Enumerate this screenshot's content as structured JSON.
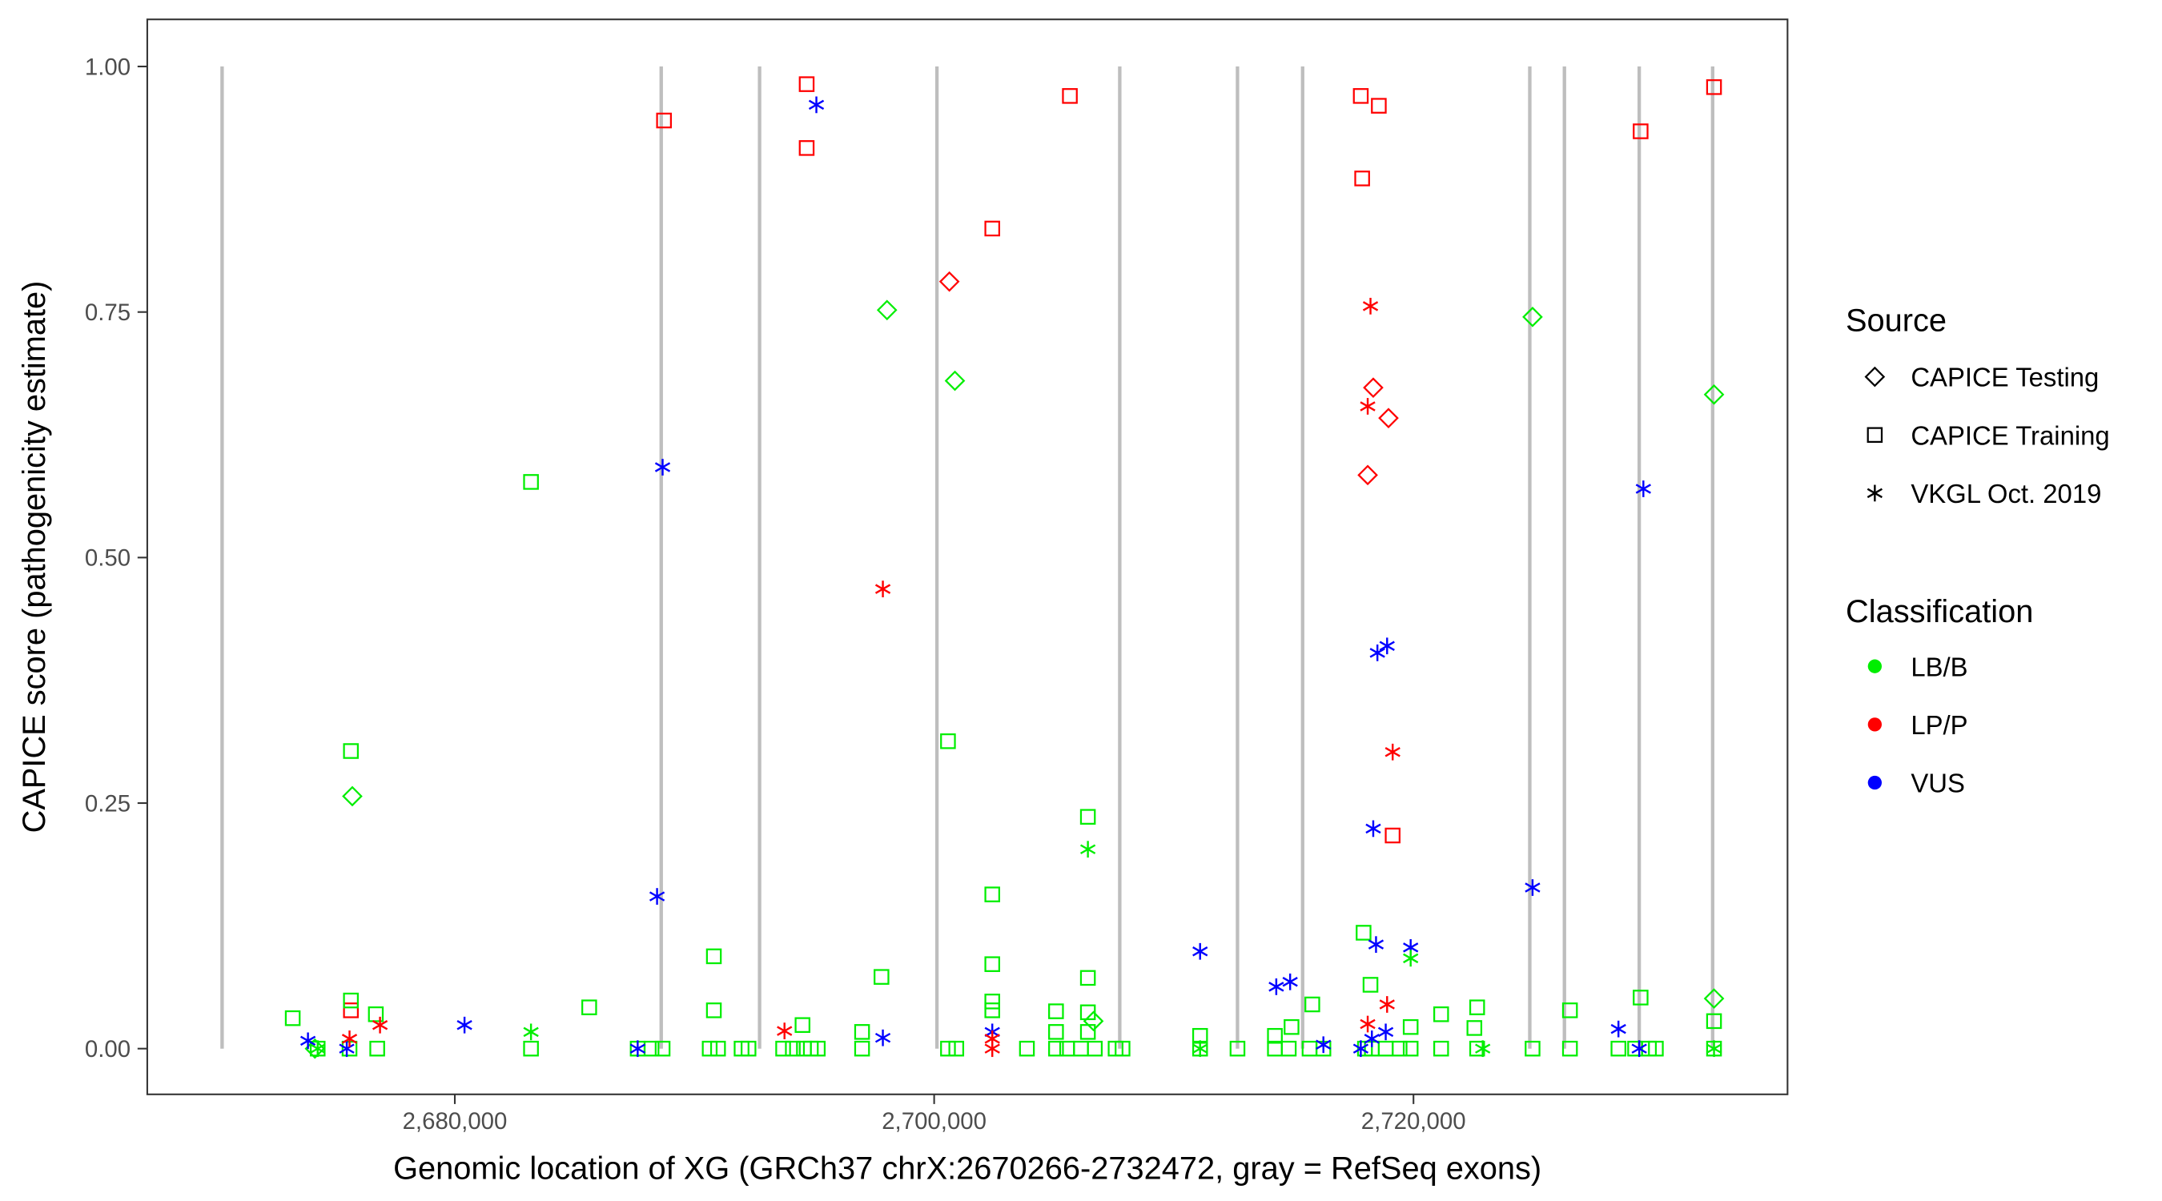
{
  "chart_data": {
    "type": "scatter",
    "xlabel": "Genomic location of XG (GRCh37 chrX:2670266-2732472, gray = RefSeq exons)",
    "ylabel": "CAPICE score (pathogenicity estimate)",
    "xlim": [
      2676000,
      2743000
    ],
    "ylim": [
      -0.046,
      1.046
    ],
    "x_ticks": [
      2680000,
      2700000,
      2720000
    ],
    "x_tick_labels": [
      "2,680,000",
      "2,700,000",
      "2,720,000"
    ],
    "y_ticks": [
      0,
      0.25,
      0.5,
      0.75,
      1
    ],
    "y_tick_labels": [
      "0.00",
      "0.25",
      "0.50",
      "0.75",
      "1.00"
    ],
    "grid": false,
    "exons": [
      2670290,
      2688612,
      2692716,
      2700116,
      2707744,
      2712657,
      2715374,
      2724853,
      2726298,
      2729419,
      2732482
    ],
    "legend": {
      "placement": "right",
      "source_title": "Source",
      "sources": [
        {
          "key": "testing",
          "label": "CAPICE Testing",
          "shape": "diamond"
        },
        {
          "key": "training",
          "label": "CAPICE Training",
          "shape": "square"
        },
        {
          "key": "vkgl",
          "label": "VKGL Oct. 2019",
          "shape": "asterisk"
        }
      ],
      "class_title": "Classification",
      "classes": [
        {
          "key": "LB/B",
          "label": "LB/B",
          "color": "#00ee00"
        },
        {
          "key": "LP/P",
          "label": "LP/P",
          "color": "#ff0000"
        },
        {
          "key": "VUS",
          "label": "VUS",
          "color": "#0000ff"
        }
      ]
    },
    "series": {
      "testing": [
        [
          2675723,
          0.257,
          "LB/B"
        ],
        [
          2698034,
          0.752,
          "LB/B"
        ],
        [
          2700866,
          0.68,
          "LB/B"
        ],
        [
          2724968,
          0.745,
          "LB/B"
        ],
        [
          2732540,
          0.666,
          "LB/B"
        ],
        [
          2732540,
          0.051,
          "LB/B"
        ],
        [
          2706646,
          0.028,
          "LB/B"
        ],
        [
          2674162,
          0.0,
          "LB/B"
        ],
        [
          2700635,
          0.781,
          "LP/P"
        ],
        [
          2718321,
          0.673,
          "LP/P"
        ],
        [
          2718957,
          0.642,
          "LP/P"
        ],
        [
          2718090,
          0.584,
          "LP/P"
        ]
      ],
      "training": [
        [
          2694681,
          0.982,
          "LP/P"
        ],
        [
          2688728,
          0.945,
          "LP/P"
        ],
        [
          2694681,
          0.917,
          "LP/P"
        ],
        [
          2702426,
          0.835,
          "LP/P"
        ],
        [
          2705663,
          0.97,
          "LP/P"
        ],
        [
          2717801,
          0.97,
          "LP/P"
        ],
        [
          2718553,
          0.96,
          "LP/P"
        ],
        [
          2717859,
          0.886,
          "LP/P"
        ],
        [
          2729477,
          0.934,
          "LP/P"
        ],
        [
          2732540,
          0.979,
          "LP/P"
        ],
        [
          2719131,
          0.217,
          "LP/P"
        ],
        [
          2675665,
          0.039,
          "LP/P"
        ],
        [
          2683179,
          0.577,
          "LB/B"
        ],
        [
          2675665,
          0.303,
          "LB/B"
        ],
        [
          2700577,
          0.313,
          "LB/B"
        ],
        [
          2702426,
          0.157,
          "LB/B"
        ],
        [
          2706415,
          0.236,
          "LB/B"
        ],
        [
          2690809,
          0.094,
          "LB/B"
        ],
        [
          2702426,
          0.086,
          "LB/B"
        ],
        [
          2697802,
          0.073,
          "LB/B"
        ],
        [
          2706415,
          0.072,
          "LB/B"
        ],
        [
          2717917,
          0.118,
          "LB/B"
        ],
        [
          2718206,
          0.065,
          "LB/B"
        ],
        [
          2673237,
          0.031,
          "LB/B"
        ],
        [
          2685607,
          0.042,
          "LB/B"
        ],
        [
          2675665,
          0.049,
          "LB/B"
        ],
        [
          2676705,
          0.035,
          "LB/B"
        ],
        [
          2690809,
          0.039,
          "LB/B"
        ],
        [
          2702426,
          0.048,
          "LB/B"
        ],
        [
          2702426,
          0.039,
          "LB/B"
        ],
        [
          2705085,
          0.038,
          "LB/B"
        ],
        [
          2706415,
          0.037,
          "LB/B"
        ],
        [
          2715778,
          0.045,
          "LB/B"
        ],
        [
          2714911,
          0.022,
          "LB/B"
        ],
        [
          2721154,
          0.035,
          "LB/B"
        ],
        [
          2722656,
          0.042,
          "LB/B"
        ],
        [
          2722541,
          0.021,
          "LB/B"
        ],
        [
          2726529,
          0.039,
          "LB/B"
        ],
        [
          2729477,
          0.052,
          "LB/B"
        ],
        [
          2732540,
          0.028,
          "LB/B"
        ],
        [
          2719882,
          0.022,
          "LB/B"
        ],
        [
          2694508,
          0.024,
          "LB/B"
        ],
        [
          2696993,
          0.017,
          "LB/B"
        ],
        [
          2705085,
          0.017,
          "LB/B"
        ],
        [
          2706415,
          0.017,
          "LB/B"
        ],
        [
          2711096,
          0.013,
          "LB/B"
        ],
        [
          2714218,
          0.013,
          "LB/B"
        ],
        [
          2674278,
          0,
          "LB/B"
        ],
        [
          2675607,
          0,
          "LB/B"
        ],
        [
          2676763,
          0,
          "LB/B"
        ],
        [
          2683179,
          0,
          "LB/B"
        ],
        [
          2687630,
          0,
          "LB/B"
        ],
        [
          2688208,
          0,
          "LB/B"
        ],
        [
          2688670,
          0,
          "LB/B"
        ],
        [
          2690635,
          0,
          "LB/B"
        ],
        [
          2690982,
          0,
          "LB/B"
        ],
        [
          2691965,
          0,
          "LB/B"
        ],
        [
          2692254,
          0,
          "LB/B"
        ],
        [
          2693699,
          0,
          "LB/B"
        ],
        [
          2694103,
          0,
          "LB/B"
        ],
        [
          2694566,
          0,
          "LB/B"
        ],
        [
          2694855,
          0,
          "LB/B"
        ],
        [
          2695144,
          0,
          "LB/B"
        ],
        [
          2696993,
          0,
          "LB/B"
        ],
        [
          2700577,
          0,
          "LB/B"
        ],
        [
          2700924,
          0,
          "LB/B"
        ],
        [
          2703871,
          0,
          "LB/B"
        ],
        [
          2705085,
          0,
          "LB/B"
        ],
        [
          2705548,
          0,
          "LB/B"
        ],
        [
          2706126,
          0,
          "LB/B"
        ],
        [
          2706704,
          0,
          "LB/B"
        ],
        [
          2707571,
          0,
          "LB/B"
        ],
        [
          2707860,
          0,
          "LB/B"
        ],
        [
          2711096,
          0,
          "LB/B"
        ],
        [
          2712657,
          0,
          "LB/B"
        ],
        [
          2714218,
          0,
          "LB/B"
        ],
        [
          2714796,
          0,
          "LB/B"
        ],
        [
          2715663,
          0,
          "LB/B"
        ],
        [
          2716241,
          0,
          "LB/B"
        ],
        [
          2717975,
          0,
          "LB/B"
        ],
        [
          2718264,
          0,
          "LB/B"
        ],
        [
          2718842,
          0,
          "LB/B"
        ],
        [
          2719420,
          0,
          "LB/B"
        ],
        [
          2719882,
          0,
          "LB/B"
        ],
        [
          2721154,
          0,
          "LB/B"
        ],
        [
          2722656,
          0,
          "LB/B"
        ],
        [
          2724968,
          0,
          "LB/B"
        ],
        [
          2726529,
          0,
          "LB/B"
        ],
        [
          2728552,
          0,
          "LB/B"
        ],
        [
          2729246,
          0,
          "LB/B"
        ],
        [
          2729824,
          0,
          "LB/B"
        ],
        [
          2730113,
          0,
          "LB/B"
        ],
        [
          2732540,
          0,
          "LB/B"
        ]
      ],
      "vkgl": [
        [
          2695086,
          0.961,
          "VUS"
        ],
        [
          2688670,
          0.592,
          "VUS"
        ],
        [
          2688439,
          0.155,
          "VUS"
        ],
        [
          2729592,
          0.57,
          "VUS"
        ],
        [
          2718899,
          0.41,
          "VUS"
        ],
        [
          2718495,
          0.403,
          "VUS"
        ],
        [
          2718321,
          0.224,
          "VUS"
        ],
        [
          2718437,
          0.106,
          "VUS"
        ],
        [
          2719882,
          0.103,
          "VUS"
        ],
        [
          2724968,
          0.164,
          "VUS"
        ],
        [
          2711096,
          0.099,
          "VUS"
        ],
        [
          2714275,
          0.063,
          "VUS"
        ],
        [
          2714853,
          0.068,
          "VUS"
        ],
        [
          2680405,
          0.024,
          "VUS"
        ],
        [
          2673873,
          0.008,
          "VUS"
        ],
        [
          2675492,
          0,
          "VUS"
        ],
        [
          2687630,
          0,
          "VUS"
        ],
        [
          2697860,
          0.011,
          "VUS"
        ],
        [
          2702426,
          0.017,
          "VUS"
        ],
        [
          2716241,
          0.004,
          "VUS"
        ],
        [
          2717801,
          0,
          "VUS"
        ],
        [
          2718264,
          0.01,
          "VUS"
        ],
        [
          2718842,
          0.017,
          "VUS"
        ],
        [
          2728552,
          0.02,
          "VUS"
        ],
        [
          2729419,
          0,
          "VUS"
        ],
        [
          2697860,
          0.468,
          "LP/P"
        ],
        [
          2718206,
          0.756,
          "LP/P"
        ],
        [
          2718090,
          0.654,
          "LP/P"
        ],
        [
          2719131,
          0.302,
          "LP/P"
        ],
        [
          2718899,
          0.045,
          "LP/P"
        ],
        [
          2718090,
          0.025,
          "LP/P"
        ],
        [
          2676879,
          0.024,
          "LP/P"
        ],
        [
          2693756,
          0.018,
          "LP/P"
        ],
        [
          2675607,
          0.01,
          "LP/P"
        ],
        [
          2702426,
          0.01,
          "LP/P"
        ],
        [
          2702426,
          0,
          "LP/P"
        ],
        [
          2706415,
          0.203,
          "LB/B"
        ],
        [
          2719882,
          0.092,
          "LB/B"
        ],
        [
          2683179,
          0.017,
          "LB/B"
        ],
        [
          2674278,
          0,
          "LB/B"
        ],
        [
          2722888,
          0,
          "LB/B"
        ],
        [
          2732540,
          0,
          "LB/B"
        ],
        [
          2711096,
          0,
          "LB/B"
        ]
      ]
    }
  }
}
